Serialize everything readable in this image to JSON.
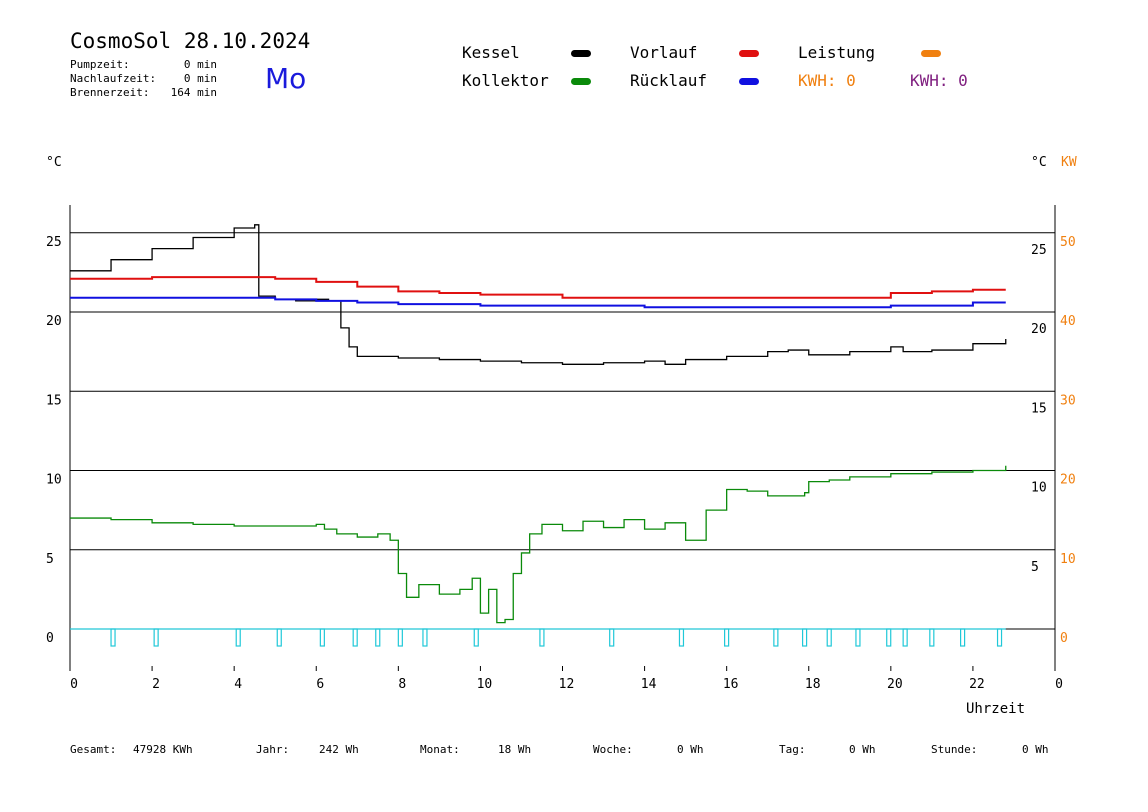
{
  "header": {
    "app_name": "CosmoSol",
    "date": "28.10.2024",
    "weekday": "Mo",
    "stats": [
      {
        "label": "Pumpzeit:",
        "value": "0 min"
      },
      {
        "label": "Nachlaufzeit:",
        "value": "0 min"
      },
      {
        "label": "Brennerzeit:",
        "value": "164 min"
      }
    ]
  },
  "legend": {
    "kessel": {
      "label": "Kessel",
      "color": "#000000"
    },
    "vorlauf": {
      "label": "Vorlauf",
      "color": "#e01010"
    },
    "leistung": {
      "label": "Leistung",
      "color": "#f08010"
    },
    "kollektor": {
      "label": "Kollektor",
      "color": "#0a8a0a"
    },
    "ruecklauf": {
      "label": "Rücklauf",
      "color": "#1010e0"
    },
    "kwh_orange": {
      "label": "KWH: 0",
      "color": "#f08010"
    },
    "kwh_purple": {
      "label": "KWH: 0",
      "color": "#802080"
    }
  },
  "axes": {
    "left_unit": "°C",
    "right_unit": "°C",
    "right_unit2": "KW",
    "xlabel": "Uhrzeit"
  },
  "footer": [
    {
      "label": "Gesamt:",
      "value": "47928 KWh"
    },
    {
      "label": "Jahr:",
      "value": "242 Wh"
    },
    {
      "label": "Monat:",
      "value": "18 Wh"
    },
    {
      "label": "Woche:",
      "value": "0 Wh"
    },
    {
      "label": "Tag:",
      "value": "0 Wh"
    },
    {
      "label": "Stunde:",
      "value": "0 Wh"
    }
  ],
  "chart_data": {
    "type": "line",
    "xlim": [
      0,
      24
    ],
    "x_ticks": [
      "0",
      "2",
      "4",
      "6",
      "8",
      "10",
      "12",
      "14",
      "16",
      "18",
      "20",
      "22",
      "0"
    ],
    "ylim_left": [
      -2,
      27
    ],
    "left_ticks": [
      0,
      5,
      10,
      15,
      20,
      25
    ],
    "right_ticks": [
      5,
      10,
      15,
      20,
      25
    ],
    "kw_ticks": [
      0,
      10,
      20,
      30,
      40,
      50
    ],
    "grid_y": [
      0,
      5,
      10,
      15,
      20,
      25
    ],
    "series": [
      {
        "name": "Kessel",
        "color": "#000000",
        "x": [
          0,
          1,
          2,
          3,
          4,
          4.5,
          4.6,
          5,
          5.5,
          6,
          6.3,
          6.6,
          6.8,
          7,
          8,
          9,
          10,
          11,
          12,
          13,
          14,
          14.5,
          15,
          16,
          17,
          17.5,
          18,
          19,
          20,
          20.3,
          21,
          22,
          22.8
        ],
        "y": [
          22.6,
          23.3,
          24.0,
          24.7,
          25.3,
          25.5,
          21.0,
          20.8,
          20.7,
          20.8,
          20.7,
          19.0,
          17.8,
          17.2,
          17.1,
          17.0,
          16.9,
          16.8,
          16.7,
          16.8,
          16.9,
          16.7,
          17.0,
          17.2,
          17.5,
          17.6,
          17.3,
          17.5,
          17.8,
          17.5,
          17.6,
          18.0,
          18.3
        ]
      },
      {
        "name": "Vorlauf",
        "color": "#e01010",
        "x": [
          0,
          2,
          4,
          5,
          6,
          7,
          8,
          9,
          10,
          12,
          14,
          16,
          18,
          20,
          21,
          22,
          22.8
        ],
        "y": [
          22.1,
          22.2,
          22.2,
          22.1,
          21.9,
          21.6,
          21.3,
          21.2,
          21.1,
          20.9,
          20.9,
          20.9,
          20.9,
          21.2,
          21.3,
          21.4,
          21.4
        ]
      },
      {
        "name": "Rücklauf",
        "color": "#1010e0",
        "x": [
          0,
          2,
          4,
          5,
          6,
          7,
          8,
          10,
          12,
          14,
          16,
          18,
          20,
          22,
          22.8
        ],
        "y": [
          20.9,
          20.9,
          20.9,
          20.8,
          20.7,
          20.6,
          20.5,
          20.4,
          20.4,
          20.3,
          20.3,
          20.3,
          20.4,
          20.6,
          20.6
        ]
      },
      {
        "name": "Kollektor",
        "color": "#0a8a0a",
        "x": [
          0,
          1,
          2,
          3,
          4,
          5,
          5.5,
          6,
          6.2,
          6.5,
          7,
          7.5,
          7.8,
          8,
          8.2,
          8.5,
          9,
          9.5,
          9.8,
          10,
          10.2,
          10.4,
          10.6,
          10.8,
          11,
          11.2,
          11.5,
          12,
          12.5,
          13,
          13.5,
          14,
          14.5,
          15,
          15.5,
          16,
          16.5,
          17,
          17.5,
          17.9,
          18,
          18.5,
          19,
          20,
          21,
          22,
          22.8
        ],
        "y": [
          7.0,
          6.9,
          6.7,
          6.6,
          6.5,
          6.5,
          6.5,
          6.6,
          6.3,
          6.0,
          5.8,
          6.0,
          5.6,
          3.5,
          2.0,
          2.8,
          2.2,
          2.5,
          3.2,
          1.0,
          2.5,
          0.4,
          0.6,
          3.5,
          4.8,
          6.0,
          6.6,
          6.2,
          6.8,
          6.4,
          6.9,
          6.3,
          6.7,
          5.6,
          7.5,
          8.8,
          8.7,
          8.4,
          8.4,
          8.6,
          9.3,
          9.4,
          9.6,
          9.8,
          9.9,
          10.0,
          10.3
        ]
      }
    ],
    "pump_events": [
      1.0,
      2.05,
      4.05,
      5.05,
      6.1,
      6.9,
      7.45,
      8.0,
      8.6,
      9.85,
      11.45,
      13.15,
      14.85,
      15.95,
      17.15,
      17.85,
      18.45,
      19.15,
      19.9,
      20.3,
      20.95,
      21.7,
      22.6
    ]
  }
}
